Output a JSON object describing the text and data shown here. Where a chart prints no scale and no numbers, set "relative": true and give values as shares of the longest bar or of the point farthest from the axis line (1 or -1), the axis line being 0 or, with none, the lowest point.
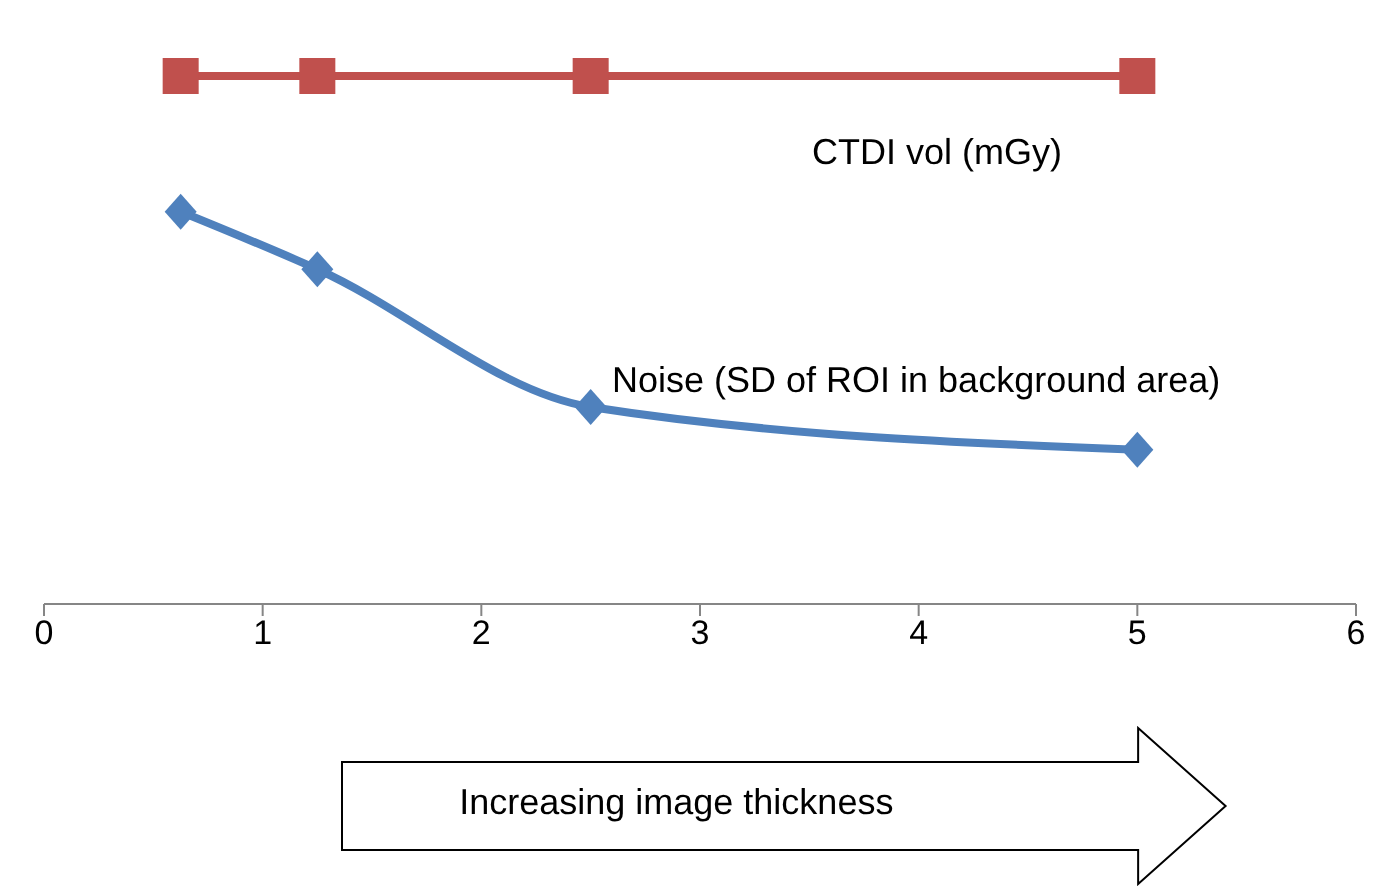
{
  "chart_data": {
    "type": "line",
    "relative": true,
    "x": [
      0.625,
      1.25,
      2.5,
      5
    ],
    "xlim": [
      0,
      6
    ],
    "xticks": [
      0,
      1,
      2,
      3,
      4,
      5,
      6
    ],
    "series": [
      {
        "name": "CTDI vol (mGy)",
        "color": "#c0504d",
        "values": [
          1,
          1,
          1,
          1
        ],
        "marker": "square"
      },
      {
        "name": "Noise (SD of ROI in background area)",
        "color": "#4f81bd",
        "values": [
          0.743,
          0.634,
          0.373,
          0.292
        ],
        "marker": "diamond"
      }
    ],
    "annotations": [
      "Increasing image thickness"
    ],
    "grid": false
  }
}
